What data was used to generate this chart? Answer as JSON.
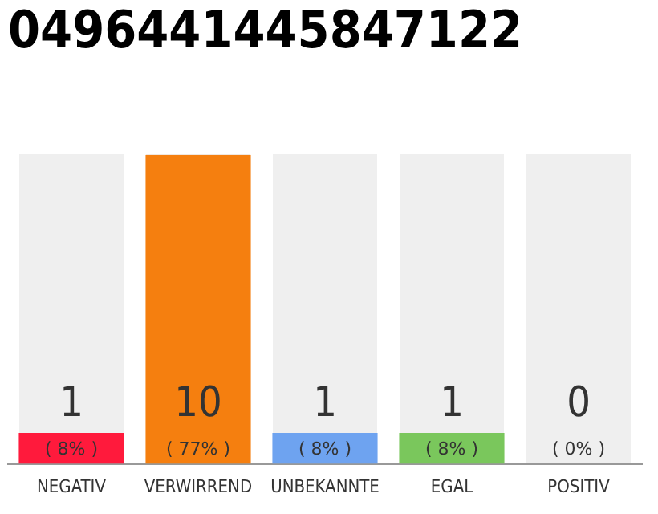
{
  "chart_data": {
    "type": "bar",
    "title": "0496441445847122",
    "categories": [
      "NEGATIV",
      "VERWIRREND",
      "UNBEKANNTE",
      "EGAL",
      "POSITIV"
    ],
    "values": [
      1,
      10,
      1,
      1,
      0
    ],
    "colors": [
      "#ff1a3c",
      "#f57f0f",
      "#6ea3f0",
      "#7ac75c",
      "#bbbbbb"
    ],
    "data_labels": true,
    "annotations": [
      "( 8% )",
      "( 77% )",
      "( 8% )",
      "( 8% )",
      "( 0% )"
    ],
    "grid": false,
    "legend": false
  }
}
